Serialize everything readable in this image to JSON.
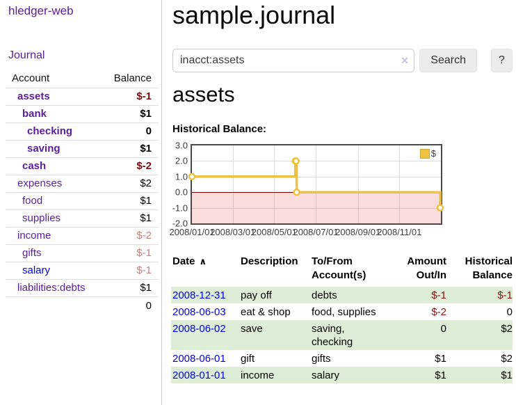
{
  "sidebar": {
    "brand": "hledger-web",
    "journal_link": "Journal",
    "columns": {
      "account": "Account",
      "balance": "Balance"
    },
    "accounts": [
      {
        "name": "assets",
        "balance": "$-1"
      },
      {
        "name": "bank",
        "balance": "$1"
      },
      {
        "name": "checking",
        "balance": "0"
      },
      {
        "name": "saving",
        "balance": "$1"
      },
      {
        "name": "cash",
        "balance": "$-2"
      },
      {
        "name": "expenses",
        "balance": "$2"
      },
      {
        "name": "food",
        "balance": "$1"
      },
      {
        "name": "supplies",
        "balance": "$1"
      },
      {
        "name": "income",
        "balance": "$-2"
      },
      {
        "name": "gifts",
        "balance": "$-1"
      },
      {
        "name": "salary",
        "balance": "$-1"
      },
      {
        "name": "liabilities:debts",
        "balance": "$1"
      }
    ],
    "total": "0"
  },
  "header": {
    "title": "sample.journal"
  },
  "search": {
    "value": "inacct:assets",
    "clear_icon": "×",
    "search_button": "Search",
    "help_button": "?"
  },
  "account_view": {
    "heading": "assets",
    "chart_title": "Historical Balance:"
  },
  "chart_data": {
    "type": "line",
    "title": "Historical Balance:",
    "steps": true,
    "series": [
      {
        "name": "$",
        "color": "#edc240",
        "dates": [
          "2008-01-01",
          "2008-06-01",
          "2008-06-02",
          "2008-06-03",
          "2008-12-31"
        ],
        "days": [
          0,
          152,
          153,
          154,
          365
        ],
        "values": [
          1,
          2,
          2,
          0,
          -1
        ]
      }
    ],
    "x_ticks": [
      {
        "label": "2008/01/01",
        "day": 0
      },
      {
        "label": "2008/03/01",
        "day": 60
      },
      {
        "label": "2008/05/01",
        "day": 121
      },
      {
        "label": "2008/07/01",
        "day": 182
      },
      {
        "label": "2008/09/01",
        "day": 244
      },
      {
        "label": "2008/11/01",
        "day": 305
      }
    ],
    "x_max_day": 366,
    "y_ticks": [
      3,
      2,
      1,
      0,
      -1,
      -2
    ],
    "ylim": [
      -2,
      3
    ],
    "grid": true,
    "legend_position": "ne",
    "colors": {
      "negative_region": "rgba(235,60,60,0.18)",
      "zero_line": "#7a0000",
      "grid": "#dcdcdc",
      "border": "#4a4a4a"
    }
  },
  "register": {
    "columns": {
      "date": "Date",
      "sort_asc_icon": "∧",
      "description": "Description",
      "tofrom": "To/From Account(s)",
      "amount": "Amount Out/In",
      "balance": "Historical Balance"
    },
    "rows": [
      {
        "date": "2008-12-31",
        "description": "pay off",
        "accounts": "debts",
        "amount": "$-1",
        "balance": "$-1"
      },
      {
        "date": "2008-06-03",
        "description": "eat & shop",
        "accounts": "food, supplies",
        "amount": "$-2",
        "balance": "0"
      },
      {
        "date": "2008-06-02",
        "description": "save",
        "accounts": "saving,\nchecking",
        "amount": "0",
        "balance": "$2"
      },
      {
        "date": "2008-06-01",
        "description": "gift",
        "accounts": "gifts",
        "amount": "$1",
        "balance": "$2"
      },
      {
        "date": "2008-01-01",
        "description": "income",
        "accounts": "salary",
        "amount": "$1",
        "balance": "$1"
      }
    ]
  }
}
